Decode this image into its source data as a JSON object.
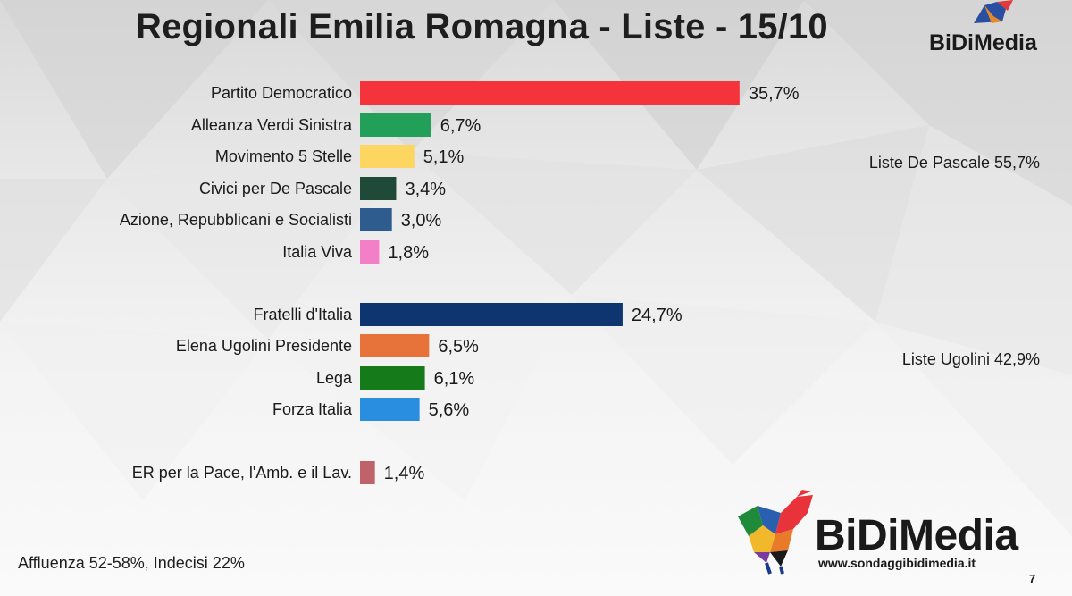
{
  "title": "Regionali Emilia Romagna - Liste - 15/10",
  "header_logo": "BiDiMedia",
  "colors": {
    "pd": "#f4343a",
    "avs": "#22a05a",
    "m5s": "#fdd561",
    "civici": "#1f4a3a",
    "azione": "#2f5c8f",
    "iv": "#f27fc8",
    "fdi": "#0f3570",
    "ugolini": "#e8733a",
    "lega": "#157a1a",
    "fi": "#2a8ee0",
    "er": "#c0626a"
  },
  "chart_data": {
    "type": "bar",
    "orientation": "horizontal",
    "categories": [
      "Partito Democratico",
      "Alleanza Verdi Sinistra",
      "Movimento 5 Stelle",
      "Civici per De Pascale",
      "Azione, Repubblicani e Socialisti",
      "Italia Viva",
      "Fratelli d'Italia",
      "Elena Ugolini Presidente",
      "Lega",
      "Forza Italia",
      "ER per la Pace, l'Amb. e il Lav."
    ],
    "values": [
      35.7,
      6.7,
      5.1,
      3.4,
      3.0,
      1.8,
      24.7,
      6.5,
      6.1,
      5.6,
      1.4
    ],
    "value_labels": [
      "35,7%",
      "6,7%",
      "5,1%",
      "3,4%",
      "3,0%",
      "1,8%",
      "24,7%",
      "6,5%",
      "6,1%",
      "5,6%",
      "1,4%"
    ],
    "bar_colors": [
      "#f4343a",
      "#22a05a",
      "#fdd561",
      "#1f4a3a",
      "#2f5c8f",
      "#f27fc8",
      "#0f3570",
      "#e8733a",
      "#157a1a",
      "#2a8ee0",
      "#c0626a"
    ],
    "groups": [
      {
        "label": "Liste De Pascale 55,7%",
        "members": [
          0,
          1,
          2,
          3,
          4,
          5
        ]
      },
      {
        "label": "Liste Ugolini 42,9%",
        "members": [
          6,
          7,
          8,
          9
        ]
      },
      {
        "label": "",
        "members": [
          10
        ]
      }
    ],
    "xlim": [
      0,
      40
    ],
    "grid": false,
    "legend": "none"
  },
  "footer": {
    "note": "Affluenza 52-58%, Indecisi 22%",
    "brand": "BiDiMedia",
    "url": "www.sondaggibidimedia.it",
    "page": "7"
  }
}
